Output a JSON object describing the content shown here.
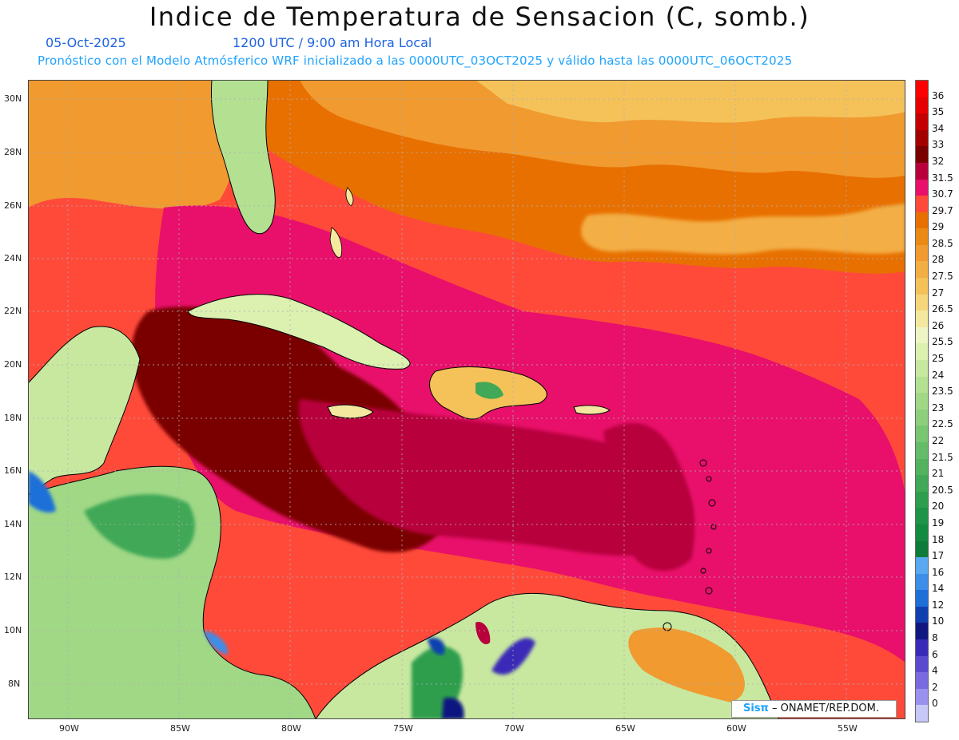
{
  "header": {
    "title": "Indice de Temperatura de Sensacion (C, somb.)",
    "date": "05-Oct-2025",
    "time": "1200 UTC / 9:00 am Hora Local",
    "model_line": "Pronóstico con el Modelo Atmósferico WRF inicializado a las 0000UTC_03OCT2025 y válido hasta las  0000UTC_06OCT2025"
  },
  "axes": {
    "lat_labels": [
      "30N",
      "28N",
      "26N",
      "24N",
      "22N",
      "20N",
      "18N",
      "16N",
      "14N",
      "12N",
      "10N",
      "8N"
    ],
    "lon_labels": [
      "90W",
      "85W",
      "80W",
      "75W",
      "70W",
      "65W",
      "60W",
      "55W"
    ]
  },
  "colorbar": {
    "labels": [
      "36",
      "35",
      "34",
      "33",
      "32",
      "31.5",
      "30.7",
      "29.7",
      "29",
      "28.5",
      "28",
      "27.5",
      "27",
      "26.5",
      "26",
      "25.5",
      "25",
      "24",
      "23.5",
      "23",
      "22.5",
      "22",
      "21.5",
      "21",
      "20.5",
      "20",
      "19",
      "18",
      "17",
      "16",
      "14",
      "12",
      "10",
      "8",
      "6",
      "4",
      "2",
      "0"
    ],
    "colors": [
      "#ff0000",
      "#e60000",
      "#c40000",
      "#a30000",
      "#7a0000",
      "#b8003c",
      "#e8106a",
      "#ff4a3a",
      "#e87000",
      "#ea8a14",
      "#f09a30",
      "#f3ae44",
      "#f5c25a",
      "#f6d67a",
      "#f3e89e",
      "#eef4c4",
      "#dcf0b0",
      "#c8e8a0",
      "#b4e092",
      "#a0d886",
      "#8ccf7c",
      "#78c672",
      "#64bc68",
      "#52b25e",
      "#40a856",
      "#2e9e4e",
      "#1e9448",
      "#128a40",
      "#0e7c38",
      "#5aa8f0",
      "#3c8ee8",
      "#1f6fd8",
      "#1040b0",
      "#101880",
      "#3a2ab8",
      "#5a4ad0",
      "#7a6ae0",
      "#9a90ee",
      "#c8c8f8"
    ]
  },
  "credit": {
    "logo": "Sisπ",
    "text": "– ONAMET/REP.DOM."
  }
}
